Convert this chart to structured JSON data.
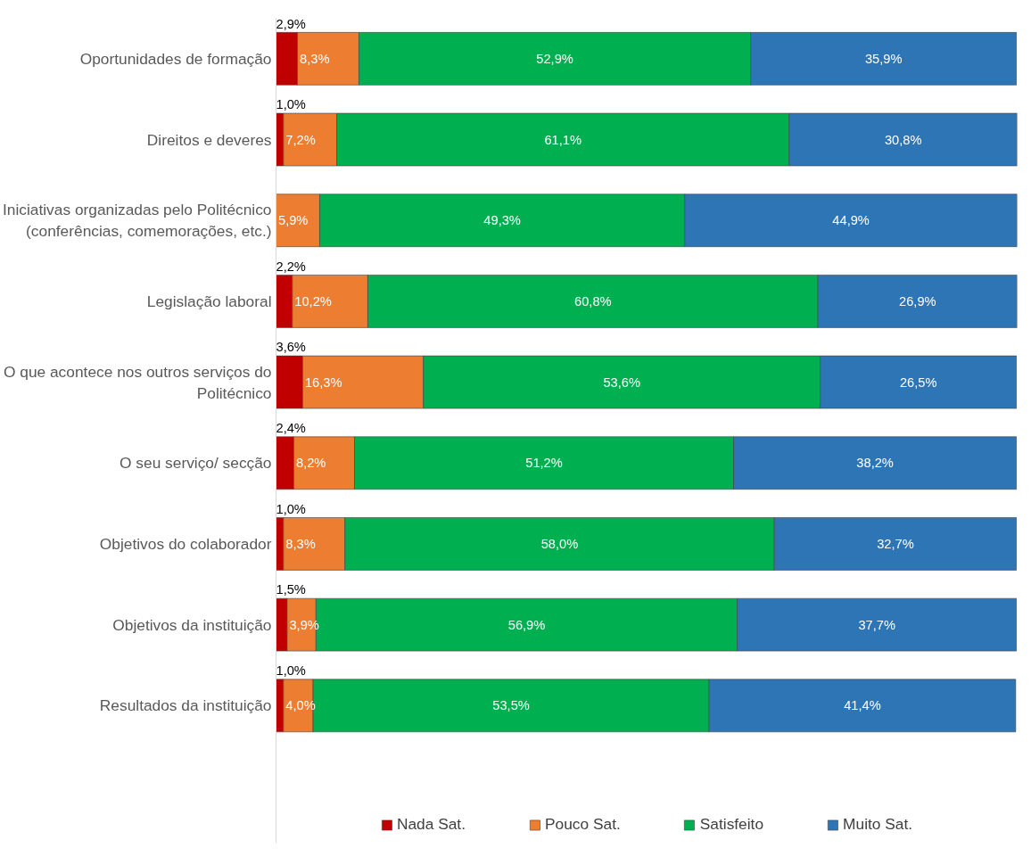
{
  "chart_data": {
    "type": "bar",
    "orientation": "horizontal",
    "stacked": true,
    "categories": [
      "Oportunidades de formação",
      "Direitos e deveres",
      "Iniciativas organizadas pelo Politécnico (conferências, comemorações, etc.)",
      "Legislação laboral",
      "O que acontece nos outros serviços do Politécnico",
      "O seu serviço/ secção",
      "Objetivos do colaborador",
      "Objetivos da instituição",
      "Resultados da instituição"
    ],
    "xlim": [
      0,
      100.1
    ],
    "tick_labels": "y",
    "grid": false,
    "legend": "bottom",
    "series": [
      {
        "name": "Nada Sat.",
        "color": "#c00000",
        "values": [
          2.9,
          1.0,
          null,
          2.2,
          3.6,
          2.4,
          1.0,
          1.5,
          1.0
        ],
        "value_labels": [
          "2,9%",
          "1,0%",
          null,
          "2,2%",
          "3,6%",
          "2,4%",
          "1,0%",
          "1,5%",
          "1,0%"
        ]
      },
      {
        "name": "Pouco Sat.",
        "color": "#ed7d31",
        "values": [
          8.3,
          7.2,
          5.9,
          10.2,
          16.3,
          8.2,
          8.3,
          3.9,
          4.0
        ],
        "value_labels": [
          "8,3%",
          "7,2%",
          "5,9%",
          "10,2%",
          "16,3%",
          "8,2%",
          "8,3%",
          "3,9%",
          "4,0%"
        ]
      },
      {
        "name": "Satisfeito",
        "color": "#00b050",
        "values": [
          52.9,
          61.1,
          49.3,
          60.8,
          53.6,
          51.2,
          58.0,
          56.9,
          53.5
        ],
        "value_labels": [
          "52,9%",
          "61,1%",
          "49,3%",
          "60,8%",
          "53,6%",
          "51,2%",
          "58,0%",
          "56,9%",
          "53,5%"
        ]
      },
      {
        "name": "Muito Sat.",
        "color": "#2e75b6",
        "values": [
          35.9,
          30.8,
          44.9,
          26.9,
          26.5,
          38.2,
          32.7,
          37.7,
          41.4
        ],
        "value_labels": [
          "35,9%",
          "30,8%",
          "44,9%",
          "26,9%",
          "26,5%",
          "38,2%",
          "32,7%",
          "37,7%",
          "41,4%"
        ]
      }
    ]
  }
}
